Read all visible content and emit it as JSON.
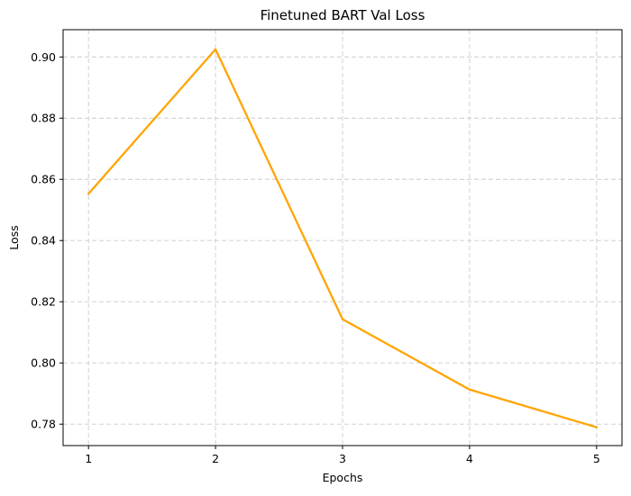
{
  "chart_data": {
    "type": "line",
    "title": "Finetuned BART Val Loss",
    "xlabel": "Epochs",
    "ylabel": "Loss",
    "x": [
      1,
      2,
      3,
      4,
      5
    ],
    "x_ticks": [
      "1",
      "2",
      "3",
      "4",
      "5"
    ],
    "y_ticks": [
      "0.78",
      "0.80",
      "0.82",
      "0.84",
      "0.86",
      "0.88",
      "0.90"
    ],
    "xlim": [
      0.8,
      5.2
    ],
    "ylim": [
      0.773,
      0.9089
    ],
    "series": [
      {
        "values": [
          0.8553,
          0.9025,
          0.8143,
          0.7913,
          0.779
        ],
        "color": "#ffa500"
      }
    ],
    "grid": true,
    "legend": "none"
  }
}
